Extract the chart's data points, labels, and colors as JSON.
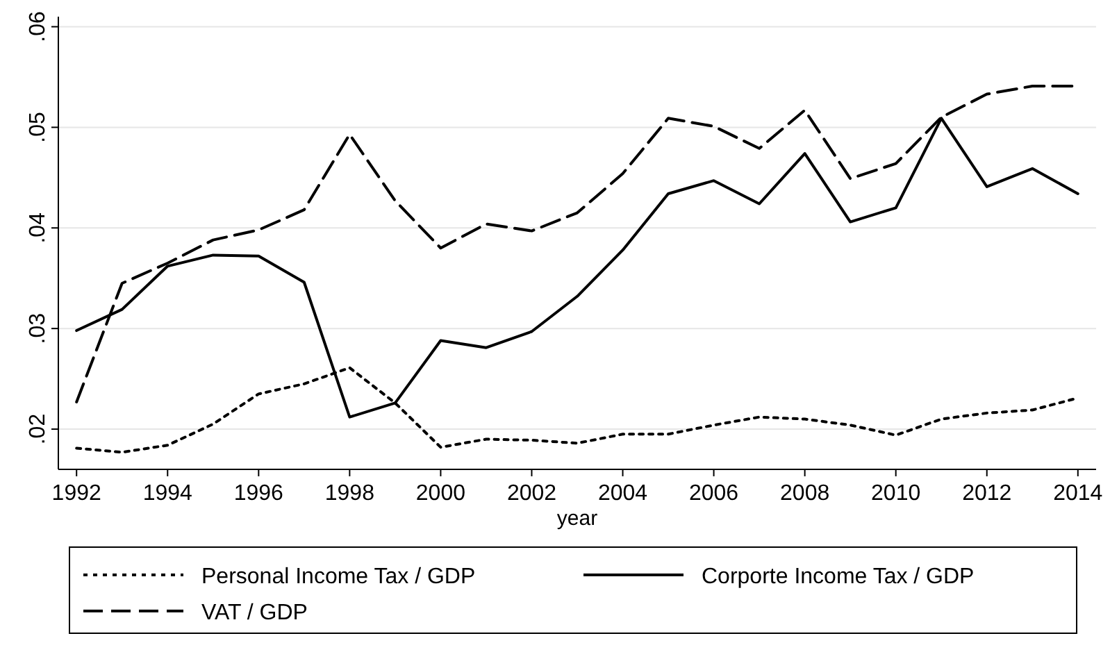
{
  "chart_data": {
    "type": "line",
    "xlabel": "year",
    "x": [
      1992,
      1993,
      1994,
      1995,
      1996,
      1997,
      1998,
      1999,
      2000,
      2001,
      2002,
      2003,
      2004,
      2005,
      2006,
      2007,
      2008,
      2009,
      2010,
      2011,
      2012,
      2013,
      2014
    ],
    "xlim": [
      1991.6,
      2014.4
    ],
    "xticks": [
      1992,
      1994,
      1996,
      1998,
      2000,
      2002,
      2004,
      2006,
      2008,
      2010,
      2012,
      2014
    ],
    "ylim": [
      0.016,
      0.061
    ],
    "yticks": [
      {
        "value": 0.02,
        "label": ".02"
      },
      {
        "value": 0.03,
        "label": ".03"
      },
      {
        "value": 0.04,
        "label": ".04"
      },
      {
        "value": 0.05,
        "label": ".05"
      },
      {
        "value": 0.06,
        "label": ".06"
      }
    ],
    "grid": "y",
    "legend": "bottom",
    "marker": "none",
    "series": [
      {
        "name": "Personal Income Tax / GDP",
        "color": "#000000",
        "line_style": "dotted",
        "values": [
          0.0181,
          0.0177,
          0.0184,
          0.0205,
          0.0235,
          0.0245,
          0.0261,
          0.0226,
          0.0182,
          0.019,
          0.0189,
          0.0186,
          0.0195,
          0.0195,
          0.0204,
          0.0212,
          0.021,
          0.0204,
          0.0194,
          0.021,
          0.0216,
          0.0219,
          0.0231
        ]
      },
      {
        "name": "Corporte Income Tax / GDP",
        "color": "#000000",
        "line_style": "solid",
        "values": [
          0.0298,
          0.0319,
          0.0362,
          0.0373,
          0.0372,
          0.0346,
          0.0212,
          0.0226,
          0.0288,
          0.0281,
          0.0297,
          0.0332,
          0.0378,
          0.0434,
          0.0447,
          0.0424,
          0.0474,
          0.0406,
          0.042,
          0.0509,
          0.0441,
          0.0459,
          0.0434
        ]
      },
      {
        "name": "VAT / GDP",
        "color": "#000000",
        "line_style": "dashed",
        "values": [
          0.0227,
          0.0345,
          0.0365,
          0.0388,
          0.0398,
          0.0418,
          0.0493,
          0.0427,
          0.038,
          0.0404,
          0.0397,
          0.0415,
          0.0454,
          0.0509,
          0.0501,
          0.0479,
          0.0517,
          0.0449,
          0.0464,
          0.051,
          0.0533,
          0.0541,
          0.0541
        ]
      }
    ]
  }
}
